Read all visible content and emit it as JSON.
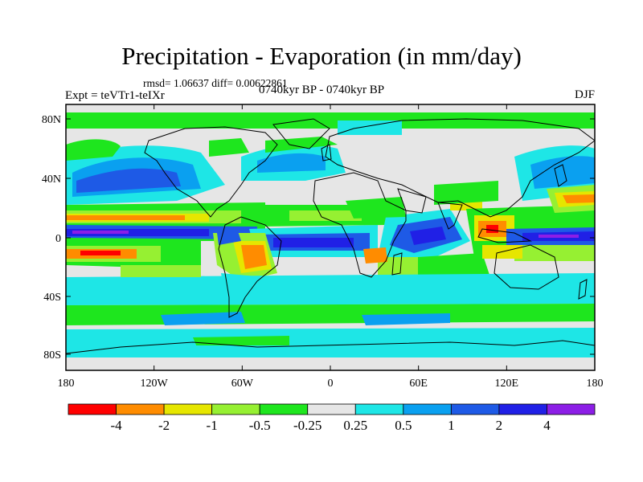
{
  "title": "Precipitation - Evaporation (in mm/day)",
  "stats_line": "rmsd= 1.06637 diff= 0.00622861",
  "experiment": "Expt = teVTr1-teIXr",
  "period": "0740kyr BP - 0740kyr BP",
  "season": "DJF",
  "colors": {
    "ocean_background": "#e6e6e6",
    "frame": "#000000",
    "coastline": "#000000"
  },
  "map": {
    "lat_ticks": [
      "80N",
      "40N",
      "0",
      "40S",
      "80S"
    ],
    "lon_ticks": [
      "180",
      "120W",
      "60W",
      "0",
      "60E",
      "120E",
      "180"
    ]
  },
  "colorbar": {
    "colors": [
      "#ff0000",
      "#ff8c00",
      "#e6e600",
      "#96f032",
      "#1ee61e",
      "#e6e6e6",
      "#1ee6e6",
      "#0aa0f0",
      "#1e5ae6",
      "#2020e6",
      "#8c1ee6"
    ],
    "labels": [
      "-4",
      "-2",
      "-1",
      "-0.5",
      "-0.25",
      "0.25",
      "0.5",
      "1",
      "2",
      "4"
    ]
  }
}
